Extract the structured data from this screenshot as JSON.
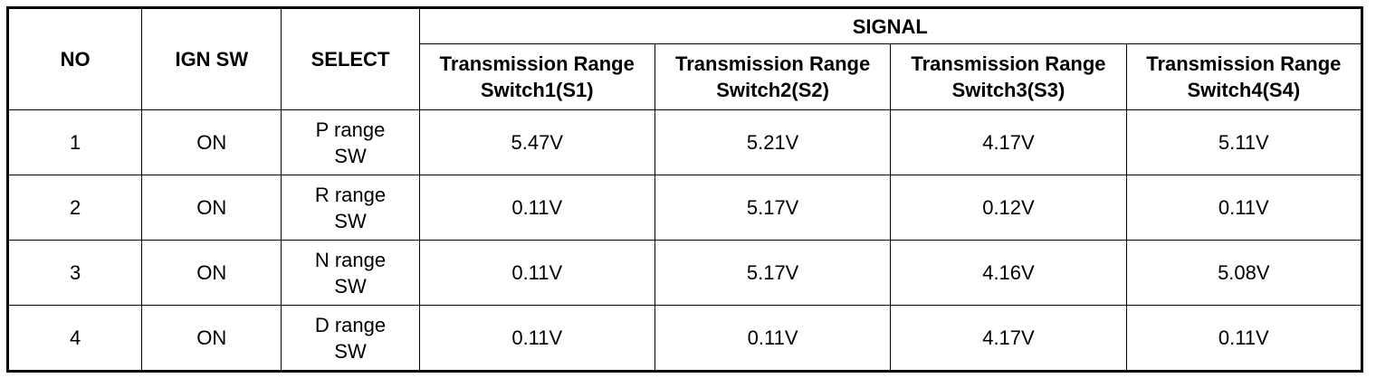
{
  "table": {
    "headers": {
      "no": "NO",
      "ign_sw": "IGN SW",
      "select": "SELECT",
      "signal": "SIGNAL",
      "switches": [
        {
          "line1": "Transmission Range",
          "line2": "Switch1(S1)"
        },
        {
          "line1": "Transmission Range",
          "line2": "Switch2(S2)"
        },
        {
          "line1": "Transmission Range",
          "line2": "Switch3(S3)"
        },
        {
          "line1": "Transmission Range",
          "line2": "Switch4(S4)"
        }
      ]
    },
    "rows": [
      {
        "no": "1",
        "ign_sw": "ON",
        "select_line1": "P range",
        "select_line2": "SW",
        "s1": "5.47V",
        "s2": "5.21V",
        "s3": "4.17V",
        "s4": "5.11V"
      },
      {
        "no": "2",
        "ign_sw": "ON",
        "select_line1": "R range",
        "select_line2": "SW",
        "s1": "0.11V",
        "s2": "5.17V",
        "s3": "0.12V",
        "s4": "0.11V"
      },
      {
        "no": "3",
        "ign_sw": "ON",
        "select_line1": "N range",
        "select_line2": "SW",
        "s1": "0.11V",
        "s2": "5.17V",
        "s3": "4.16V",
        "s4": "5.08V"
      },
      {
        "no": "4",
        "ign_sw": "ON",
        "select_line1": "D range",
        "select_line2": "SW",
        "s1": "0.11V",
        "s2": "0.11V",
        "s3": "4.17V",
        "s4": "0.11V"
      }
    ]
  }
}
